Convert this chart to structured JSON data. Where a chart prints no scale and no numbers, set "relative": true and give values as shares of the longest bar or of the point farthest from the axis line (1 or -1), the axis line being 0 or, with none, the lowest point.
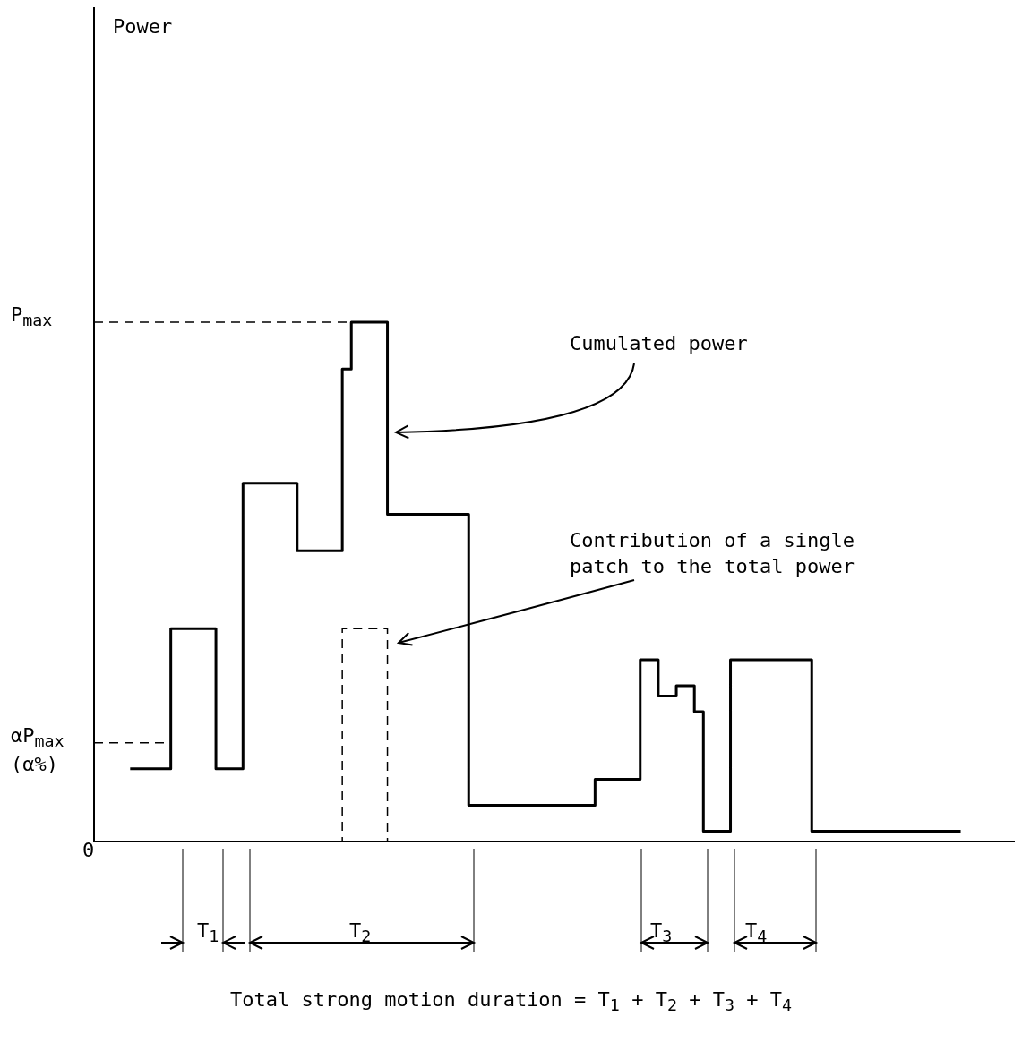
{
  "chart_data": {
    "type": "step",
    "relative": true,
    "categories": [
      null,
      null,
      null,
      null,
      null,
      null,
      null,
      null,
      null,
      null,
      null,
      null,
      null,
      null,
      null,
      null,
      null,
      null,
      null,
      null,
      null,
      null,
      null,
      null,
      null,
      null,
      null,
      null,
      null,
      null,
      null,
      null,
      null,
      null,
      null,
      null,
      null,
      null,
      null,
      null,
      null,
      null,
      null,
      null,
      null,
      null,
      null,
      null,
      null,
      null,
      null,
      null,
      null,
      null,
      null,
      null,
      null,
      null,
      null,
      null,
      null,
      null,
      null,
      null,
      null,
      null,
      null,
      null,
      null,
      null,
      null,
      null,
      null,
      null,
      null,
      null,
      null,
      null,
      null,
      null,
      null,
      null,
      null,
      null,
      null,
      null,
      null,
      null,
      null,
      null,
      null,
      null,
      null,
      null,
      null,
      null,
      null,
      null,
      null,
      null,
      null,
      null,
      null
    ],
    "series": [
      {
        "color": "#000000",
        "line_style": "solid",
        "values": [
          null,
          null,
          null,
          null,
          0.14,
          0.14,
          0.14,
          0.14,
          0.14,
          0.41,
          0.41,
          0.41,
          0.41,
          0.41,
          0.14,
          0.14,
          0.14,
          0.69,
          0.69,
          0.69,
          0.69,
          0.69,
          0.69,
          0.56,
          0.56,
          0.56,
          0.56,
          0.56,
          0.91,
          1,
          1,
          1,
          1,
          0.63,
          0.63,
          0.63,
          0.63,
          0.63,
          0.63,
          0.63,
          0.63,
          0.63,
          0.07,
          0.07,
          0.07,
          0.07,
          0.07,
          0.07,
          0.07,
          0.07,
          0.07,
          0.07,
          0.07,
          0.07,
          0.07,
          0.07,
          0.12,
          0.12,
          0.12,
          0.12,
          0.12,
          0.35,
          0.35,
          0.28,
          0.28,
          0.3,
          0.3,
          0.25,
          0.02,
          0.02,
          0.02,
          0.35,
          0.35,
          0.35,
          0.35,
          0.35,
          0.35,
          0.35,
          0.35,
          0.35,
          0.02,
          0.02,
          0.02,
          0.02,
          0.02,
          0.02,
          0.02,
          0.02,
          0.02,
          0.02,
          0.02,
          0.02,
          0.02,
          0.02,
          0.02,
          0.02,
          0.02,
          null,
          null,
          null,
          null,
          null,
          null
        ]
      },
      {
        "color": "#000000",
        "line_style": "dashed",
        "values": [
          null,
          null,
          null,
          null,
          null,
          null,
          null,
          null,
          null,
          null,
          null,
          null,
          null,
          null,
          null,
          null,
          null,
          null,
          null,
          null,
          null,
          null,
          null,
          null,
          null,
          null,
          null,
          0,
          0.41,
          0.41,
          0.41,
          0.41,
          0.41,
          0,
          null,
          null,
          null,
          null,
          null,
          null,
          null,
          null,
          null,
          null,
          null,
          null,
          null,
          null,
          null,
          null,
          null,
          null,
          null,
          null,
          null,
          null,
          null,
          null,
          null,
          null,
          null,
          null,
          null,
          null,
          null,
          null,
          null,
          null,
          null,
          null,
          null,
          null,
          null,
          null,
          null,
          null,
          null,
          null,
          null,
          null,
          null,
          null,
          null,
          null,
          null,
          null,
          null,
          null,
          null,
          null,
          null,
          null,
          null,
          null,
          null,
          null,
          null,
          null,
          null,
          null,
          null,
          null,
          null
        ]
      }
    ],
    "ref_lines": [
      {
        "axis": "y",
        "value": 1,
        "label": "P$_{max}$",
        "line_style": "dashed"
      },
      {
        "axis": "y",
        "value": 0.19,
        "label": "αP$_{max}$ (α%)",
        "line_style": "dashed"
      }
    ],
    "annotations": [
      "Power",
      "Cumulated power",
      "Contribution of a single patch to the total power",
      "T$_{1}$",
      "T$_{2}$",
      "T$_{3}$",
      "T$_{4}$",
      "0",
      "Total strong motion duration = T$_{1}$ + T$_{2}$ + T$_{3}$ + T$_{4}$"
    ],
    "marker": "none",
    "legend": false
  }
}
